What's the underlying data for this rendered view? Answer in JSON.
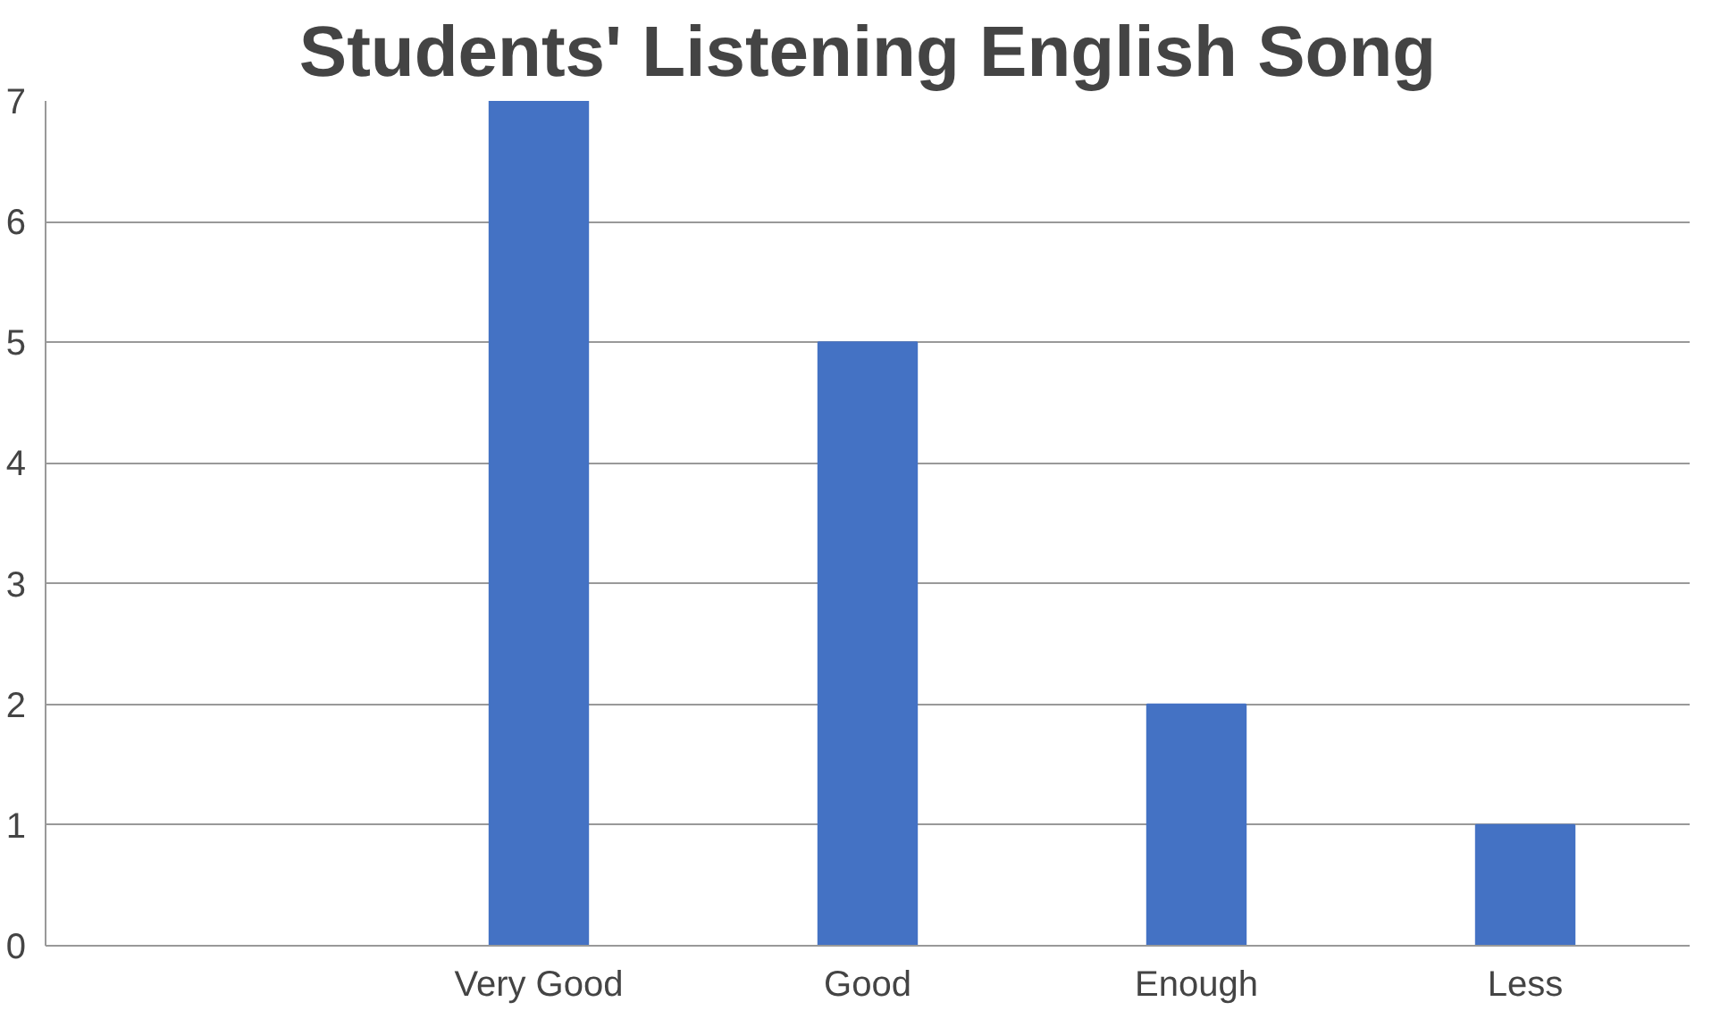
{
  "chart_data": {
    "type": "bar",
    "title": "Students' Listening English Song",
    "categories": [
      null,
      "Very Good",
      "Good",
      "Enough",
      "Less"
    ],
    "values": [
      null,
      7,
      5,
      2,
      1
    ],
    "color": "#4472c4",
    "ylim": [
      0,
      7
    ],
    "yticks": [
      0,
      1,
      2,
      3,
      4,
      5,
      6,
      7
    ],
    "grid": "y"
  }
}
